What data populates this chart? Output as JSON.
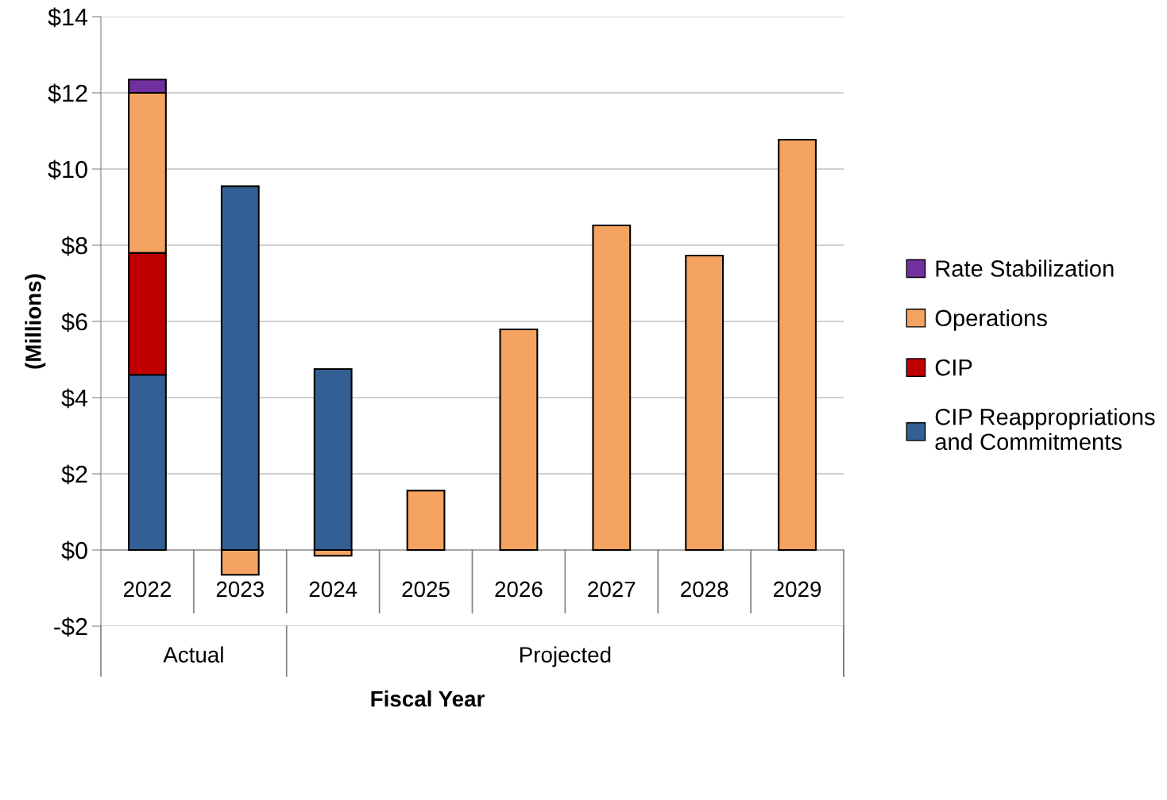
{
  "chart_data": {
    "type": "bar",
    "stacked": true,
    "xlabel": "Fiscal Year",
    "ylabel": "(Millions)",
    "categories": [
      "2022",
      "2023",
      "2024",
      "2025",
      "2026",
      "2027",
      "2028",
      "2029"
    ],
    "series": [
      {
        "name": "CIP Reappropriations\nand Commitments",
        "color": "#336094",
        "values": [
          4.6,
          9.55,
          4.75,
          0,
          0,
          0,
          0,
          0
        ]
      },
      {
        "name": "CIP",
        "color": "#c00000",
        "values": [
          3.2,
          0,
          0,
          0,
          0,
          0,
          0,
          0
        ]
      },
      {
        "name": "Operations",
        "color": "#f4a460",
        "values": [
          4.2,
          -0.65,
          -0.15,
          1.56,
          5.79,
          8.52,
          7.73,
          10.77
        ]
      },
      {
        "name": "Rate Stabilization",
        "color": "#7030a0",
        "values": [
          0.35,
          0,
          0,
          0,
          0,
          0,
          0,
          0
        ]
      }
    ],
    "ylim": [
      -2,
      14
    ],
    "yticks": [
      {
        "value": -2,
        "label": "-$2"
      },
      {
        "value": 0,
        "label": "$0"
      },
      {
        "value": 2,
        "label": "$2"
      },
      {
        "value": 4,
        "label": "$4"
      },
      {
        "value": 6,
        "label": "$6"
      },
      {
        "value": 8,
        "label": "$8"
      },
      {
        "value": 10,
        "label": "$10"
      },
      {
        "value": 12,
        "label": "$12"
      },
      {
        "value": 14,
        "label": "$14"
      }
    ],
    "grid": "y",
    "legend": "right",
    "annotations": [
      "Actual",
      "Projected"
    ]
  }
}
